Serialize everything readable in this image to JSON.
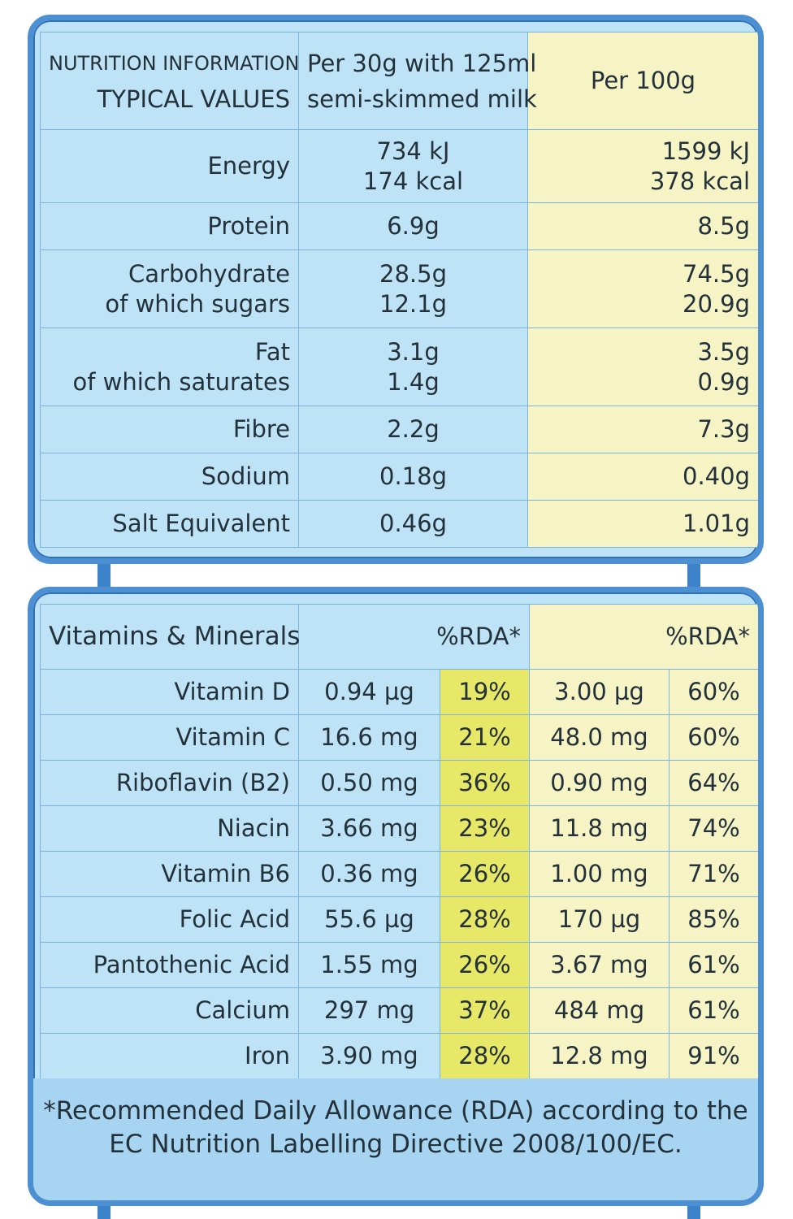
{
  "nutrition": {
    "header": {
      "title_line1": "NUTRITION INFORMATION",
      "title_line2": "TYPICAL VALUES",
      "col1_line1": "Per 30g with 125ml",
      "col1_line2": "semi-skimmed milk",
      "col2": "Per 100g"
    },
    "rows": [
      {
        "label1": "Energy",
        "label2": null,
        "v1a": "734 kJ",
        "v1b": "174 kcal",
        "v2a": "1599 kJ",
        "v2b": "378 kcal"
      },
      {
        "label1": "Protein",
        "label2": null,
        "v1a": "6.9g",
        "v1b": null,
        "v2a": "8.5g",
        "v2b": null
      },
      {
        "label1": "Carbohydrate",
        "label2": "of which sugars",
        "v1a": "28.5g",
        "v1b": "12.1g",
        "v2a": "74.5g",
        "v2b": "20.9g"
      },
      {
        "label1": "Fat",
        "label2": "of which saturates",
        "v1a": "3.1g",
        "v1b": "1.4g",
        "v2a": "3.5g",
        "v2b": "0.9g"
      },
      {
        "label1": "Fibre",
        "label2": null,
        "v1a": "2.2g",
        "v1b": null,
        "v2a": "7.3g",
        "v2b": null
      },
      {
        "label1": "Sodium",
        "label2": null,
        "v1a": "0.18g",
        "v1b": null,
        "v2a": "0.40g",
        "v2b": null
      },
      {
        "label1": "Salt Equivalent",
        "label2": null,
        "v1a": "0.46g",
        "v1b": null,
        "v2a": "1.01g",
        "v2b": null
      }
    ]
  },
  "vitamins": {
    "header": {
      "title": "Vitamins & Minerals",
      "rda1": "%RDA*",
      "rda2": "%RDA*"
    },
    "rows": [
      {
        "name": "Vitamin D",
        "a1": "0.94 µg",
        "p1": "19%",
        "a2": "3.00 µg",
        "p2": "60%"
      },
      {
        "name": "Vitamin C",
        "a1": "16.6 mg",
        "p1": "21%",
        "a2": "48.0 mg",
        "p2": "60%"
      },
      {
        "name": "Riboflavin (B2)",
        "a1": "0.50 mg",
        "p1": "36%",
        "a2": "0.90 mg",
        "p2": "64%"
      },
      {
        "name": "Niacin",
        "a1": "3.66 mg",
        "p1": "23%",
        "a2": "11.8 mg",
        "p2": "74%"
      },
      {
        "name": "Vitamin B6",
        "a1": "0.36 mg",
        "p1": "26%",
        "a2": "1.00 mg",
        "p2": "71%"
      },
      {
        "name": "Folic Acid",
        "a1": "55.6 µg",
        "p1": "28%",
        "a2": "170 µg",
        "p2": "85%"
      },
      {
        "name": "Pantothenic Acid",
        "a1": "1.55 mg",
        "p1": "26%",
        "a2": "3.67 mg",
        "p2": "61%"
      },
      {
        "name": "Calcium",
        "a1": "297 mg",
        "p1": "37%",
        "a2": "484 mg",
        "p2": "61%"
      },
      {
        "name": "Iron",
        "a1": "3.90 mg",
        "p1": "28%",
        "a2": "12.8 mg",
        "p2": "91%"
      }
    ],
    "footnote_line1": "*Recommended Daily Allowance (RDA) according to the",
    "footnote_line2": "EC Nutrition Labelling Directive 2008/100/EC."
  },
  "colors": {
    "panel_bg": "#bfe3f6",
    "panel_border": "#4d8fd3",
    "per100_bg": "#f6f4c4",
    "rda_highlight": "#e7e868"
  }
}
